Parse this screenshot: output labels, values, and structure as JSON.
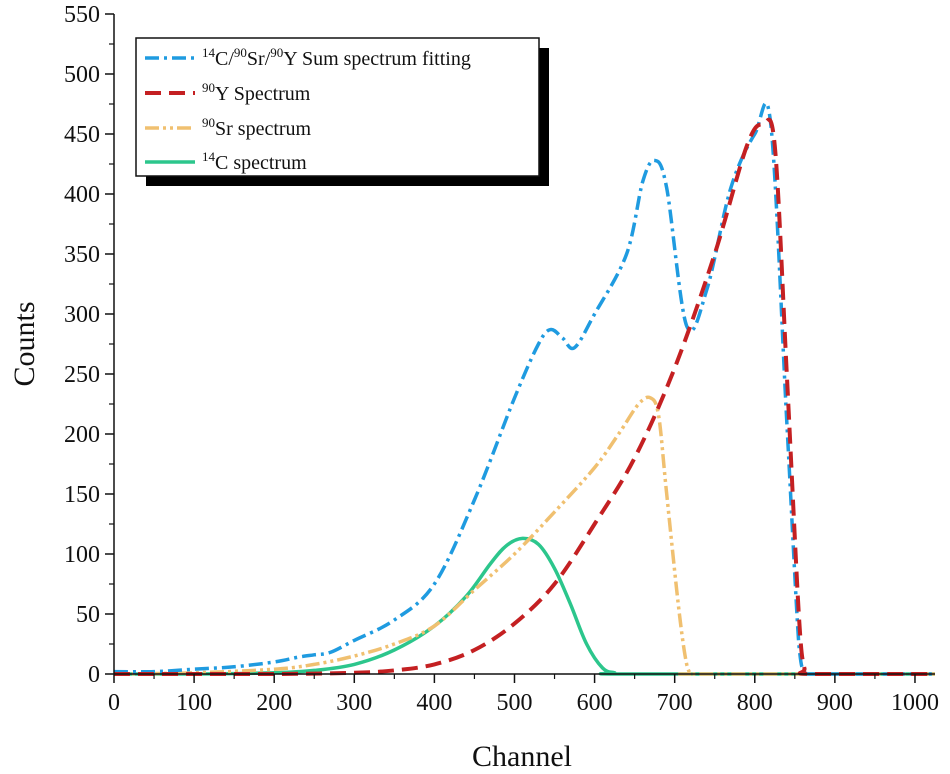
{
  "chart_data": {
    "type": "line",
    "title": "",
    "xlabel": "Channel",
    "ylabel": "Counts",
    "xlim": [
      0,
      1025
    ],
    "ylim": [
      0,
      550
    ],
    "x_ticks": [
      0,
      100,
      200,
      300,
      400,
      500,
      600,
      700,
      800,
      900,
      1000
    ],
    "y_ticks": [
      0,
      50,
      100,
      150,
      200,
      250,
      300,
      350,
      400,
      450,
      500,
      550
    ],
    "grid": false,
    "legend_position": "top-left",
    "series": [
      {
        "name_sup1": "14",
        "name_base1": "C/",
        "name_sup2": "90",
        "name_base2": "Sr/",
        "name_sup3": "90",
        "name_base3": "Y Sum spectrum fitting",
        "color": "#1f9be0",
        "style": "dash-dot",
        "x": [
          0,
          50,
          100,
          150,
          200,
          230,
          250,
          270,
          300,
          350,
          400,
          450,
          500,
          530,
          545,
          560,
          575,
          600,
          640,
          660,
          675,
          690,
          715,
          740,
          770,
          800,
          820,
          840,
          855,
          862,
          870,
          1025
        ],
        "y": [
          2,
          2,
          4,
          6,
          10,
          14,
          16,
          18,
          28,
          45,
          75,
          145,
          230,
          275,
          287,
          280,
          272,
          300,
          350,
          410,
          428,
          405,
          290,
          320,
          405,
          450,
          458,
          210,
          25,
          2,
          0,
          0
        ]
      },
      {
        "name_sup": "90",
        "name_base": "Y Spectrum",
        "color": "#c42022",
        "style": "dash",
        "x": [
          0,
          100,
          200,
          300,
          350,
          400,
          450,
          500,
          550,
          600,
          650,
          700,
          750,
          790,
          810,
          825,
          840,
          855,
          862,
          870,
          1025
        ],
        "y": [
          0,
          0,
          0,
          1,
          3,
          8,
          20,
          42,
          75,
          125,
          180,
          255,
          350,
          440,
          458,
          440,
          250,
          50,
          5,
          0,
          0
        ]
      },
      {
        "name_sup": "90",
        "name_base": "Sr spectrum",
        "color": "#f0c070",
        "style": "dash-dot-dot",
        "x": [
          0,
          100,
          200,
          250,
          300,
          350,
          400,
          450,
          500,
          550,
          600,
          630,
          655,
          670,
          680,
          690,
          705,
          715,
          722,
          730,
          1025
        ],
        "y": [
          0,
          1,
          4,
          8,
          15,
          25,
          40,
          70,
          100,
          135,
          172,
          200,
          225,
          230,
          215,
          150,
          55,
          8,
          0,
          0,
          0
        ]
      },
      {
        "name_sup": "14",
        "name_base": "C spectrum",
        "color": "#2cc68c",
        "style": "solid",
        "x": [
          0,
          100,
          200,
          250,
          300,
          350,
          400,
          440,
          470,
          490,
          510,
          530,
          550,
          570,
          590,
          610,
          625,
          640,
          1025
        ],
        "y": [
          0,
          0,
          1,
          3,
          8,
          20,
          40,
          65,
          92,
          107,
          113,
          108,
          88,
          58,
          25,
          5,
          1,
          0,
          0
        ]
      }
    ]
  }
}
